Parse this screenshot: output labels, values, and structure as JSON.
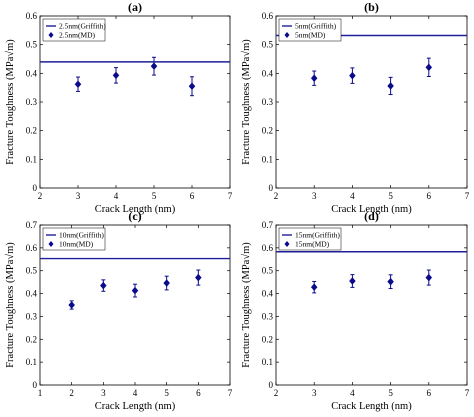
{
  "chart_data": [
    {
      "panel": "(a)",
      "type": "scatter",
      "xlabel": "Crack Length (nm)",
      "ylabel": "Fracture Toughness (MPa√m)",
      "xlim": [
        2,
        7
      ],
      "ylim": [
        0,
        0.6
      ],
      "xticks": [
        "2",
        "3",
        "4",
        "5",
        "6",
        "7"
      ],
      "yticks": [
        "0",
        "0.1",
        "0.2",
        "0.3",
        "0.4",
        "0.5",
        "0.6"
      ],
      "legend_position": "top-left",
      "series": [
        {
          "name": "2.5nm(Griffith)",
          "kind": "hline",
          "y": 0.44,
          "color": "#1f1f99"
        },
        {
          "name": "2.5nm(MD)",
          "kind": "errorbar",
          "color": "#0a0a8c",
          "x": [
            3,
            4,
            5,
            6
          ],
          "y": [
            0.362,
            0.393,
            0.425,
            0.355
          ],
          "err": [
            0.025,
            0.027,
            0.031,
            0.033
          ]
        }
      ]
    },
    {
      "panel": "(b)",
      "type": "scatter",
      "xlabel": "Crack Length (nm)",
      "ylabel": "Fracture Toughness (MPa√m)",
      "xlim": [
        2,
        7
      ],
      "ylim": [
        0,
        0.6
      ],
      "xticks": [
        "2",
        "3",
        "4",
        "5",
        "6",
        "7"
      ],
      "yticks": [
        "0",
        "0.1",
        "0.2",
        "0.3",
        "0.4",
        "0.5",
        "0.6"
      ],
      "legend_position": "top-left",
      "series": [
        {
          "name": "5nm(Griffith)",
          "kind": "hline",
          "y": 0.532,
          "color": "#1f1f99"
        },
        {
          "name": "5nm(MD)",
          "kind": "errorbar",
          "color": "#0a0a8c",
          "x": [
            3,
            4,
            5,
            6
          ],
          "y": [
            0.383,
            0.392,
            0.356,
            0.421
          ],
          "err": [
            0.025,
            0.027,
            0.03,
            0.032
          ]
        }
      ]
    },
    {
      "panel": "(c)",
      "type": "scatter",
      "xlabel": "Crack Length (nm)",
      "ylabel": "Fracture Toughness (MPa√m)",
      "xlim": [
        1,
        7
      ],
      "ylim": [
        0,
        0.7
      ],
      "xticks": [
        "1",
        "2",
        "3",
        "4",
        "5",
        "6",
        "7"
      ],
      "yticks": [
        "0",
        "0.1",
        "0.2",
        "0.3",
        "0.4",
        "0.5",
        "0.6",
        "0.7"
      ],
      "legend_position": "top-left",
      "series": [
        {
          "name": "10nm(Griffith)",
          "kind": "hline",
          "y": 0.553,
          "color": "#1f1f99"
        },
        {
          "name": "10nm(MD)",
          "kind": "errorbar",
          "color": "#0a0a8c",
          "x": [
            2,
            3,
            4,
            5,
            6
          ],
          "y": [
            0.35,
            0.435,
            0.413,
            0.446,
            0.47
          ],
          "err": [
            0.018,
            0.025,
            0.028,
            0.03,
            0.033
          ]
        }
      ]
    },
    {
      "panel": "(d)",
      "type": "scatter",
      "xlabel": "Crack Length (nm)",
      "ylabel": "Fracture Toughness (MPa√m)",
      "xlim": [
        2,
        7
      ],
      "ylim": [
        0,
        0.7
      ],
      "xticks": [
        "2",
        "3",
        "4",
        "5",
        "6",
        "7"
      ],
      "yticks": [
        "0",
        "0.1",
        "0.2",
        "0.3",
        "0.4",
        "0.5",
        "0.6",
        "0.7"
      ],
      "legend_position": "top-left",
      "series": [
        {
          "name": "15nm(Griffith)",
          "kind": "hline",
          "y": 0.583,
          "color": "#1f1f99"
        },
        {
          "name": "15nm(MD)",
          "kind": "errorbar",
          "color": "#0a0a8c",
          "x": [
            3,
            4,
            5,
            6
          ],
          "y": [
            0.428,
            0.455,
            0.452,
            0.47
          ],
          "err": [
            0.025,
            0.028,
            0.03,
            0.033
          ]
        }
      ]
    }
  ]
}
